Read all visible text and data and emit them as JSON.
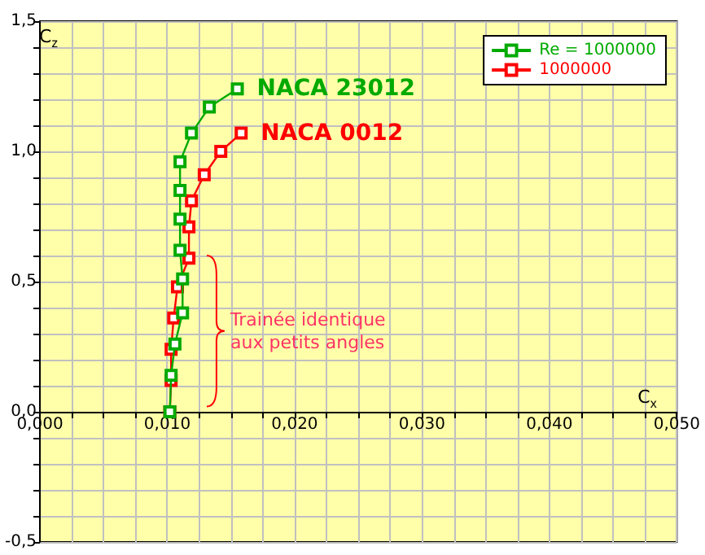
{
  "chart_data": {
    "type": "line",
    "xlabel": "C$_{x}$",
    "ylabel": "C$_{z}$",
    "series": [
      {
        "name": "Re = 1000000",
        "color": "#00aa00",
        "x": [
          0.0102,
          0.0103,
          0.0106,
          0.0112,
          0.0112,
          0.011,
          0.011,
          0.011,
          0.011,
          0.0119,
          0.0133,
          0.0155
        ],
        "values": [
          0,
          0.14,
          0.26,
          0.38,
          0.51,
          0.62,
          0.74,
          0.85,
          0.96,
          1.07,
          1.17,
          1.24
        ]
      },
      {
        "name": "1000000",
        "color": "#ff0000",
        "x": [
          0.0102,
          0.0103,
          0.0103,
          0.0105,
          0.0108,
          0.0117,
          0.0117,
          0.0119,
          0.0129,
          0.0142,
          0.0158
        ],
        "values": [
          0,
          0.12,
          0.24,
          0.36,
          0.48,
          0.59,
          0.71,
          0.81,
          0.91,
          1.0,
          1.07
        ]
      }
    ],
    "annotations": [
      {
        "text": "NACA 23012",
        "x": 0.0155,
        "y": 1.24
      },
      {
        "text": "NACA 0012",
        "x": 0.0158,
        "y": 1.07
      },
      "Trainée identique\naux petits angles"
    ],
    "xlim": [
      0,
      0.05
    ],
    "xticks": [
      {
        "value": 0,
        "label": "0,000"
      },
      {
        "value": 0.0025,
        "label": null
      },
      {
        "value": 0.005,
        "label": null
      },
      {
        "value": 0.0075,
        "label": null
      },
      {
        "value": 0.01,
        "label": "0,010"
      },
      {
        "value": 0.0125,
        "label": null
      },
      {
        "value": 0.015,
        "label": null
      },
      {
        "value": 0.0175,
        "label": null
      },
      {
        "value": 0.02,
        "label": "0,020"
      },
      {
        "value": 0.0225,
        "label": null
      },
      {
        "value": 0.025,
        "label": null
      },
      {
        "value": 0.0275,
        "label": null
      },
      {
        "value": 0.03,
        "label": "0,030"
      },
      {
        "value": 0.0325,
        "label": null
      },
      {
        "value": 0.035,
        "label": null
      },
      {
        "value": 0.0375,
        "label": null
      },
      {
        "value": 0.04,
        "label": "0,040"
      },
      {
        "value": 0.0425,
        "label": null
      },
      {
        "value": 0.045,
        "label": null
      },
      {
        "value": 0.0475,
        "label": null
      },
      {
        "value": 0.05,
        "label": "0,050"
      }
    ],
    "ylim": [
      -0.5,
      1.5
    ],
    "yticks": [
      {
        "value": -0.5,
        "label": "-0,5"
      },
      {
        "value": -0.4,
        "label": null
      },
      {
        "value": -0.3,
        "label": null
      },
      {
        "value": -0.2,
        "label": null
      },
      {
        "value": -0.1,
        "label": null
      },
      {
        "value": 0,
        "label": "0,0"
      },
      {
        "value": 0.1,
        "label": null
      },
      {
        "value": 0.2,
        "label": null
      },
      {
        "value": 0.3,
        "label": null
      },
      {
        "value": 0.4,
        "label": null
      },
      {
        "value": 0.5,
        "label": "0,5"
      },
      {
        "value": 0.6,
        "label": null
      },
      {
        "value": 0.7,
        "label": null
      },
      {
        "value": 0.8,
        "label": null
      },
      {
        "value": 0.9,
        "label": null
      },
      {
        "value": 1,
        "label": "1,0"
      },
      {
        "value": 1.1,
        "label": null
      },
      {
        "value": 1.2,
        "label": null
      },
      {
        "value": 1.3,
        "label": null
      },
      {
        "value": 1.4,
        "label": null
      },
      {
        "value": 1.5,
        "label": "1,5"
      }
    ],
    "grid": true,
    "legend": "top right",
    "marker": "square",
    "line_style": "solid"
  }
}
